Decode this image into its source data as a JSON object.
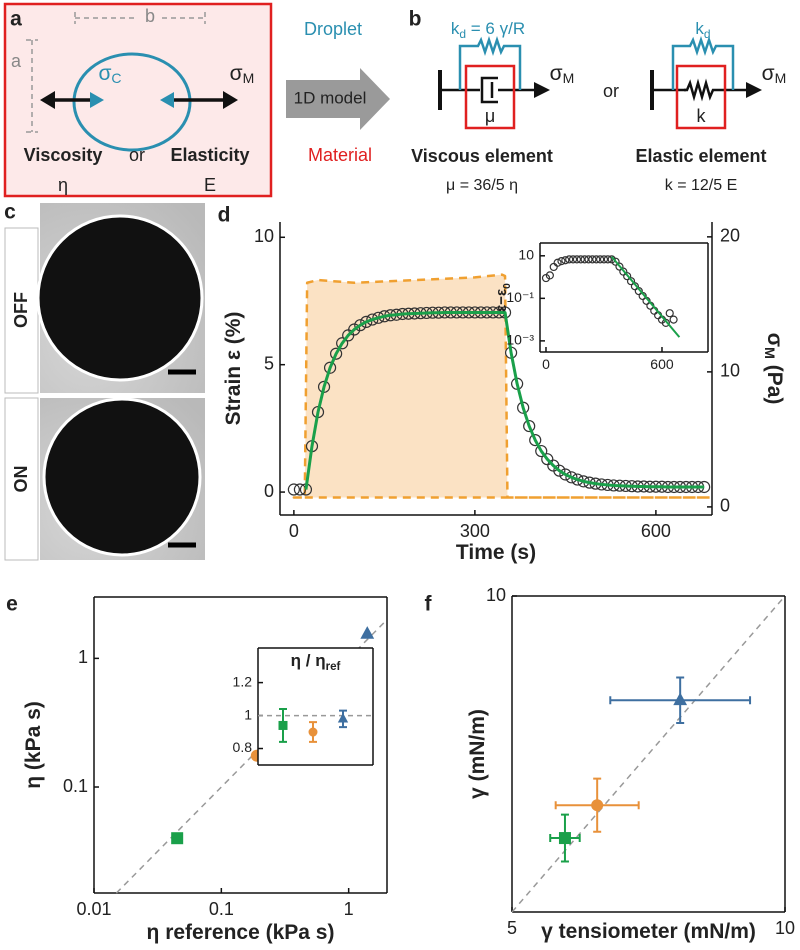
{
  "panel_labels": [
    "a",
    "b",
    "c",
    "d",
    "e",
    "f"
  ],
  "panel_a": {
    "dim_b": "b",
    "dim_a": "a",
    "sigma_c": "σ",
    "sigma_c_sub": "C",
    "sigma_m": "σ",
    "sigma_m_sub": "M",
    "viscosity": "Viscosity",
    "or": "or",
    "elasticity": "Elasticity",
    "eta": "η",
    "e": "E"
  },
  "arrow": {
    "droplet": "Droplet",
    "model": "1D model",
    "material": "Material"
  },
  "panel_b": {
    "viscous": {
      "kd": "k",
      "kd_sub": "d",
      "kd_eq": " = 6 γ/R",
      "sigma": "σ",
      "sigma_sub": "M",
      "mu": "μ",
      "name": "Viscous element",
      "relation": "μ = 36/5 η"
    },
    "or": "or",
    "elastic": {
      "kd": "k",
      "kd_sub": "d",
      "sigma": "σ",
      "sigma_sub": "M",
      "k": "k",
      "name": "Elastic element",
      "relation": "k = 12/5 E"
    }
  },
  "panel_c": {
    "off": "OFF",
    "on": "ON"
  },
  "chart_data": [
    {
      "type": "line",
      "xlabel": "Time (s)",
      "ylabel": "Strain ε (%)",
      "y2label": "σ",
      "y2label_sub": "M",
      "y2label_tail": " (Pa)",
      "xlim": [
        -23,
        693
      ],
      "ylim": [
        -0.9,
        10.6
      ],
      "y2lim": [
        -0.6,
        21.1
      ],
      "xticks": [
        0,
        300,
        600
      ],
      "yticks": [
        0,
        5,
        10
      ],
      "y2ticks": [
        0,
        10,
        20
      ],
      "series": [
        {
          "style": "dashed",
          "color": "#f0a030",
          "fill": "#fbe2c4",
          "axis": "y2",
          "x": [
            0,
            18,
            22,
            40,
            100,
            200,
            300,
            345,
            350,
            354,
            690
          ],
          "values": [
            0.7,
            0.7,
            16.6,
            16.8,
            16.6,
            16.8,
            17,
            17.2,
            17.1,
            0.7,
            0.7
          ]
        },
        {
          "marker": "circle-open",
          "color": "#333333",
          "x": [
            0,
            10,
            20,
            30,
            40,
            50,
            60,
            70,
            80,
            90,
            100,
            110,
            120,
            130,
            140,
            150,
            160,
            170,
            180,
            190,
            200,
            210,
            220,
            230,
            240,
            250,
            260,
            270,
            280,
            290,
            300,
            310,
            320,
            330,
            340,
            350,
            360,
            370,
            380,
            390,
            400,
            410,
            420,
            430,
            440,
            450,
            460,
            470,
            480,
            490,
            500,
            510,
            520,
            530,
            540,
            550,
            560,
            570,
            580,
            590,
            600,
            610,
            620,
            630,
            640,
            650,
            660,
            670,
            680
          ],
          "values": [
            0.1,
            0.1,
            0.1,
            1.8,
            3.14,
            4.13,
            4.88,
            5.43,
            5.84,
            6.15,
            6.38,
            6.55,
            6.68,
            6.77,
            6.84,
            6.9,
            6.94,
            6.96,
            6.99,
            7,
            7.01,
            7.02,
            7.03,
            7.04,
            7.04,
            7.05,
            7.05,
            7.05,
            7.05,
            7.05,
            7.05,
            7.05,
            7.05,
            7.05,
            7.05,
            7.05,
            5.47,
            4.25,
            3.31,
            2.59,
            2.04,
            1.61,
            1.29,
            1.04,
            0.84,
            0.69,
            0.58,
            0.49,
            0.42,
            0.37,
            0.33,
            0.3,
            0.28,
            0.26,
            0.25,
            0.24,
            0.23,
            0.22,
            0.22,
            0.21,
            0.21,
            0.21,
            0.2,
            0.2,
            0.2,
            0.2,
            0.2,
            0.2,
            0.2
          ]
        },
        {
          "style": "solid",
          "color": "#1aa04a",
          "x": [
            0,
            10,
            20,
            30,
            40,
            50,
            60,
            70,
            80,
            90,
            100,
            110,
            120,
            130,
            140,
            150,
            160,
            170,
            180,
            190,
            200,
            210,
            220,
            230,
            240,
            250,
            260,
            270,
            280,
            290,
            300,
            310,
            320,
            330,
            340,
            350,
            360,
            370,
            380,
            390,
            400,
            410,
            420,
            430,
            440,
            450,
            460,
            470,
            480,
            490,
            500,
            510,
            520,
            530,
            540,
            550,
            560,
            570,
            580,
            590,
            600,
            610,
            620,
            630,
            640,
            650,
            660,
            670,
            680
          ],
          "values": [
            null,
            null,
            0.1,
            1.8,
            3.14,
            4.13,
            4.88,
            5.43,
            5.84,
            6.15,
            6.38,
            6.55,
            6.68,
            6.77,
            6.84,
            6.9,
            6.94,
            6.96,
            6.99,
            7,
            7.01,
            7.02,
            7.03,
            7.04,
            7.04,
            7.05,
            7.05,
            7.05,
            7.05,
            7.05,
            7.05,
            7.05,
            7.05,
            7.05,
            7.05,
            7.05,
            5.47,
            4.25,
            3.31,
            2.59,
            2.04,
            1.61,
            1.29,
            1.04,
            0.84,
            0.69,
            0.58,
            0.49,
            0.42,
            0.37,
            0.33,
            0.3,
            0.28,
            0.26,
            0.25,
            0.24,
            0.23,
            0.22,
            0.22,
            0.21,
            0.21,
            0.21,
            0.2,
            0.2,
            0.2,
            0.2,
            0.2,
            0.2,
            0.2
          ]
        }
      ]
    },
    {
      "type": "line",
      "ylabel": "ε−ε",
      "ylabel_sub": "0",
      "ylog": true,
      "xlim": [
        -31,
        838
      ],
      "ylim": [
        0.0003,
        40
      ],
      "xticks": [
        0,
        600
      ],
      "yticks": [
        10,
        {
          "value": 0.1,
          "label": "10⁻¹"
        },
        {
          "value": 0.001,
          "label": "10⁻³"
        }
      ],
      "series": [
        {
          "marker": "circle-open",
          "color": "#333333",
          "x": [
            0,
            20,
            40,
            60,
            80,
            100,
            120,
            140,
            160,
            180,
            200,
            220,
            240,
            260,
            280,
            300,
            320,
            340,
            360,
            380,
            400,
            420,
            440,
            460,
            480,
            500,
            520,
            540,
            560,
            580,
            600,
            620,
            640,
            660
          ],
          "values": [
            0.9,
            1.2,
            3,
            4.7,
            5.6,
            6.2,
            6.8,
            6.8,
            6.8,
            6.8,
            6.8,
            6.8,
            6.8,
            6.8,
            6.8,
            6.8,
            6.8,
            6.8,
            5.3,
            3.1,
            1.8,
            1.1,
            0.64,
            0.37,
            0.22,
            0.13,
            0.076,
            0.045,
            0.026,
            0.016,
            0.01,
            0.007,
            0.02,
            0.01
          ]
        },
        {
          "style": "solid",
          "color": "#1aa04a",
          "x": [
            340,
            690
          ],
          "values": [
            9,
            0.0015
          ]
        }
      ]
    },
    {
      "type": "scatter",
      "xlabel": "η reference (kPa s)",
      "ylabel": "η (kPa s)",
      "xlog": true,
      "ylog": true,
      "xlim": [
        0.01,
        2
      ],
      "ylim": [
        0.015,
        3
      ],
      "xticks": [
        0.01,
        0.1,
        1
      ],
      "yticks": [
        0.1,
        1
      ],
      "diagonal": true,
      "series": [
        {
          "marker": "square",
          "color": "#1aa04a",
          "x": [
            0.045
          ],
          "values": [
            0.04
          ]
        },
        {
          "marker": "circle",
          "color": "#e8913a",
          "x": [
            0.19
          ],
          "values": [
            0.175
          ]
        },
        {
          "marker": "triangle",
          "color": "#3e6fa0",
          "x": [
            1.4
          ],
          "values": [
            1.55
          ]
        }
      ]
    },
    {
      "type": "dot",
      "title": "η / η",
      "title_sub": "ref",
      "categories": [
        null,
        null,
        null
      ],
      "values": [
        0.94,
        0.9,
        0.98
      ],
      "errors": [
        0.1,
        0.06,
        0.05
      ],
      "colors": [
        "#1aa04a",
        "#e8913a",
        "#3e6fa0"
      ],
      "markers": [
        "square",
        "circle",
        "triangle"
      ],
      "ylim": [
        0.7,
        1.41
      ],
      "yticks": [
        0.8,
        1,
        1.2
      ],
      "refline": 1
    },
    {
      "type": "scatter",
      "xlabel": "γ tensiometer (mN/m)",
      "ylabel": "γ (mN/m)",
      "xlim": [
        5,
        10
      ],
      "ylim": [
        5,
        10
      ],
      "xticks": [
        5,
        10
      ],
      "yticks": [
        10
      ],
      "diagonal": true,
      "series": [
        {
          "marker": "square",
          "color": "#1aa04a",
          "x": [
            5.97
          ],
          "values": [
            6.17
          ],
          "xerr": [
            0.27
          ],
          "yerr": [
            0.37
          ]
        },
        {
          "marker": "circle",
          "color": "#e8913a",
          "x": [
            6.56
          ],
          "values": [
            6.69
          ],
          "xerr": [
            0.76
          ],
          "yerr": [
            0.42
          ]
        },
        {
          "marker": "triangle",
          "color": "#3e6fa0",
          "x": [
            8.08
          ],
          "values": [
            8.35
          ],
          "xerr": [
            1.28
          ],
          "yerr": [
            0.36
          ]
        }
      ]
    }
  ]
}
